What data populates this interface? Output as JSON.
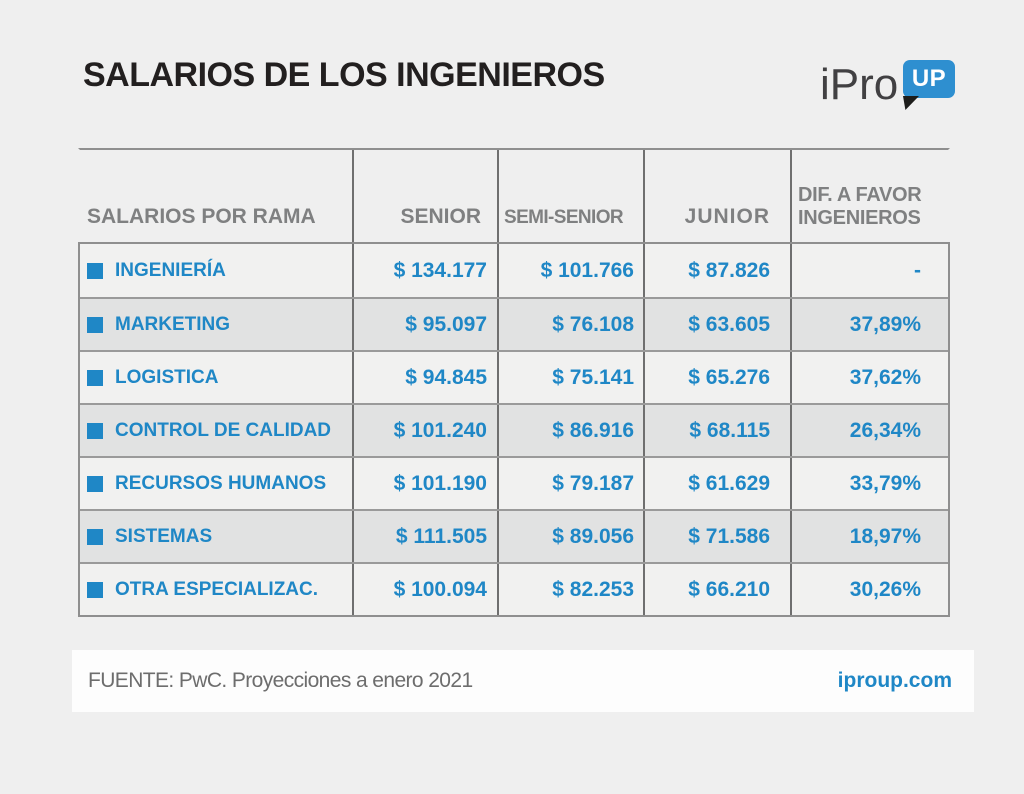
{
  "page": {
    "background": "#efefef"
  },
  "header": {
    "title": "SALARIOS DE LOS INGENIEROS",
    "logo": {
      "text": "iPro",
      "badge": "UP",
      "badge_color": "#2e8fd0",
      "text_color": "#414042"
    }
  },
  "table": {
    "columns": [
      "SALARIOS POR RAMA",
      "SENIOR",
      "SEMI-SENIOR",
      "JUNIOR",
      "DIF. A FAVOR INGENIEROS"
    ],
    "rows": [
      {
        "rama": "INGENIERÍA",
        "senior": "$ 134.177",
        "semi": "$ 101.766",
        "junior": "$ 87.826",
        "dif": "-"
      },
      {
        "rama": "MARKETING",
        "senior": "$ 95.097",
        "semi": "$ 76.108",
        "junior": "$ 63.605",
        "dif": "37,89%"
      },
      {
        "rama": "LOGISTICA",
        "senior": "$ 94.845",
        "semi": "$ 75.141",
        "junior": "$ 65.276",
        "dif": "37,62%"
      },
      {
        "rama": "CONTROL DE CALIDAD",
        "senior": "$ 101.240",
        "semi": "$ 86.916",
        "junior": "$ 68.115",
        "dif": "26,34%"
      },
      {
        "rama": "RECURSOS HUMANOS",
        "senior": "$ 101.190",
        "semi": "$ 79.187",
        "junior": "$ 61.629",
        "dif": "33,79%"
      },
      {
        "rama": "SISTEMAS",
        "senior": "$ 111.505",
        "semi": "$ 89.056",
        "junior": "$ 71.586",
        "dif": "18,97%"
      },
      {
        "rama": "OTRA ESPECIALIZAC.",
        "senior": "$ 100.094",
        "semi": "$ 82.253",
        "junior": "$ 66.210",
        "dif": "30,26%"
      }
    ],
    "accent_color": "#1f87c6"
  },
  "footer": {
    "source": "FUENTE: PwC. Proyecciones a enero 2021",
    "site": "iproup.com"
  },
  "chart_data": {
    "type": "table",
    "title": "SALARIOS DE LOS INGENIEROS",
    "columns": [
      "SALARIOS POR RAMA",
      "SENIOR",
      "SEMI-SENIOR",
      "JUNIOR",
      "DIF. A FAVOR INGENIEROS"
    ],
    "rows": [
      [
        "INGENIERÍA",
        134177,
        101766,
        87826,
        null
      ],
      [
        "MARKETING",
        95097,
        76108,
        63605,
        37.89
      ],
      [
        "LOGISTICA",
        94845,
        75141,
        65276,
        37.62
      ],
      [
        "CONTROL DE CALIDAD",
        101240,
        86916,
        68115,
        26.34
      ],
      [
        "RECURSOS HUMANOS",
        101190,
        79187,
        61629,
        33.79
      ],
      [
        "SISTEMAS",
        111505,
        89056,
        71586,
        18.97
      ],
      [
        "OTRA ESPECIALIZAC.",
        100094,
        82253,
        66210,
        30.26
      ]
    ],
    "units": {
      "salaries": "ARS $",
      "dif": "percent"
    },
    "source": "FUENTE: PwC. Proyecciones a enero 2021"
  }
}
